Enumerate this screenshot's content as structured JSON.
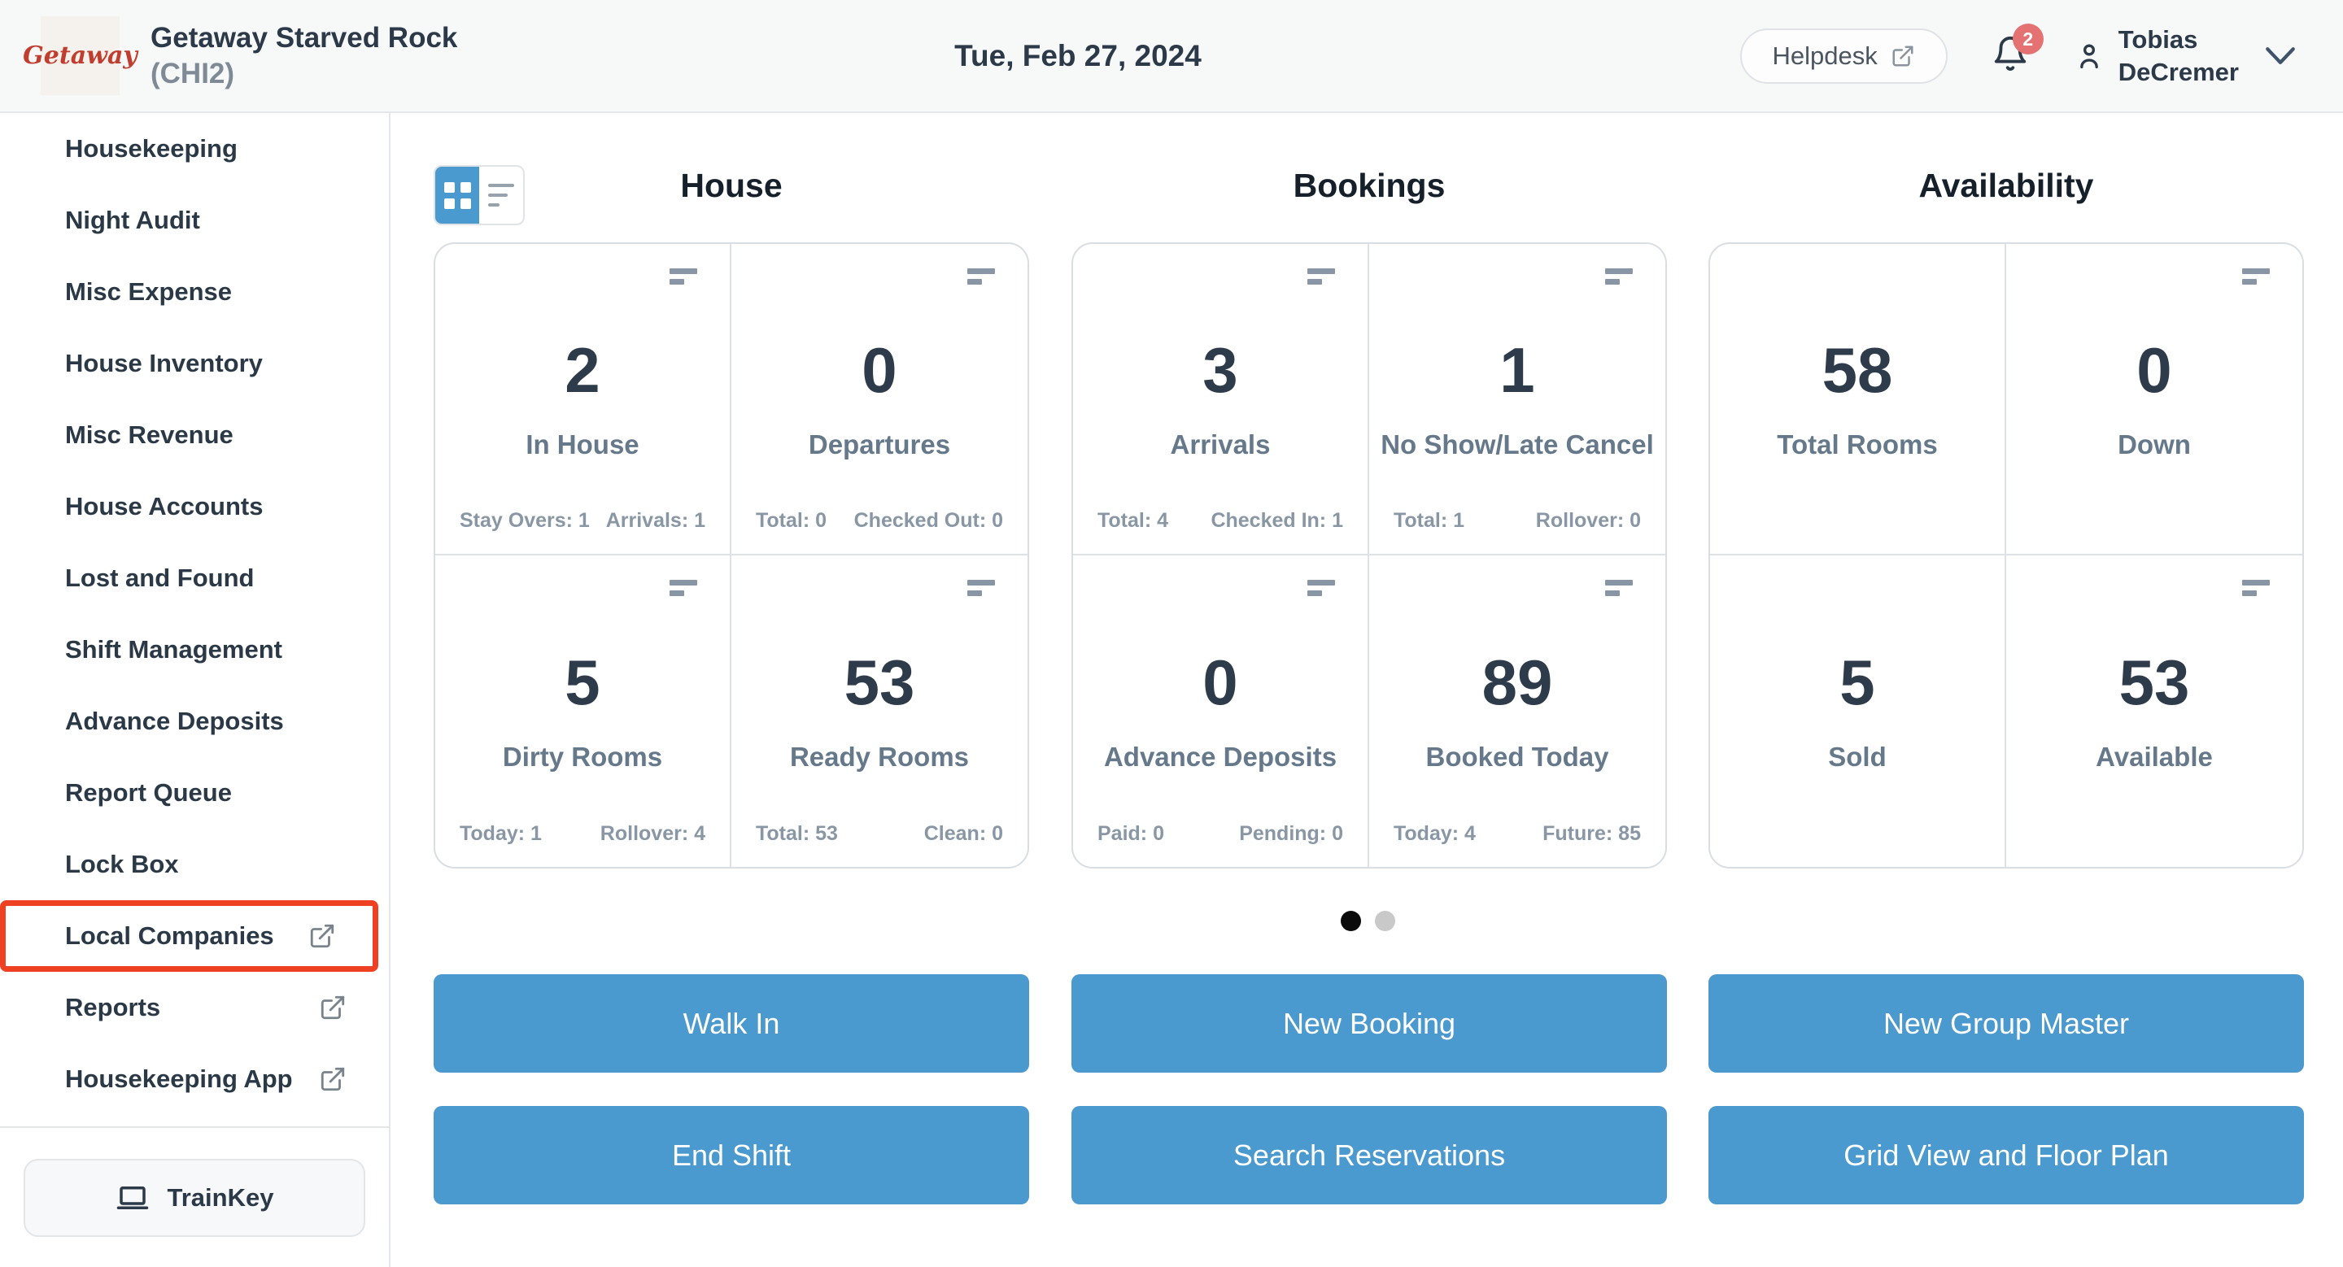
{
  "header": {
    "logo_text": "Getaway",
    "property_name": "Getaway Starved Rock",
    "property_code": "(CHI2)",
    "date": "Tue, Feb 27, 2024",
    "helpdesk_label": "Helpdesk",
    "notification_count": "2",
    "user_name_line1": "Tobias",
    "user_name_line2": "DeCremer"
  },
  "sidebar": {
    "items": [
      {
        "label": "Housekeeping",
        "external": false,
        "highlighted": false
      },
      {
        "label": "Night Audit",
        "external": false,
        "highlighted": false
      },
      {
        "label": "Misc Expense",
        "external": false,
        "highlighted": false
      },
      {
        "label": "House Inventory",
        "external": false,
        "highlighted": false
      },
      {
        "label": "Misc Revenue",
        "external": false,
        "highlighted": false
      },
      {
        "label": "House Accounts",
        "external": false,
        "highlighted": false
      },
      {
        "label": "Lost and Found",
        "external": false,
        "highlighted": false
      },
      {
        "label": "Shift Management",
        "external": false,
        "highlighted": false
      },
      {
        "label": "Advance Deposits",
        "external": false,
        "highlighted": false
      },
      {
        "label": "Report Queue",
        "external": false,
        "highlighted": false
      },
      {
        "label": "Lock Box",
        "external": false,
        "highlighted": false
      },
      {
        "label": "Local Companies",
        "external": true,
        "highlighted": true
      },
      {
        "label": "Reports",
        "external": true,
        "highlighted": false
      },
      {
        "label": "Housekeeping App",
        "external": true,
        "highlighted": false
      }
    ],
    "trainkey_label": "TrainKey"
  },
  "dashboard": {
    "sections": [
      {
        "title": "House",
        "cards": [
          {
            "value": "2",
            "label": "In House",
            "footer_left": "Stay Overs: 1",
            "footer_right": "Arrivals: 1",
            "icon": true
          },
          {
            "value": "0",
            "label": "Departures",
            "footer_left": "Total: 0",
            "footer_right": "Checked Out: 0",
            "icon": true
          },
          {
            "value": "5",
            "label": "Dirty Rooms",
            "footer_left": "Today: 1",
            "footer_right": "Rollover: 4",
            "icon": true
          },
          {
            "value": "53",
            "label": "Ready Rooms",
            "footer_left": "Total: 53",
            "footer_right": "Clean: 0",
            "icon": true
          }
        ],
        "buttons": [
          "Walk In",
          "End Shift"
        ]
      },
      {
        "title": "Bookings",
        "cards": [
          {
            "value": "3",
            "label": "Arrivals",
            "footer_left": "Total: 4",
            "footer_right": "Checked In: 1",
            "icon": true
          },
          {
            "value": "1",
            "label": "No Show/Late Cancel",
            "footer_left": "Total: 1",
            "footer_right": "Rollover: 0",
            "icon": true
          },
          {
            "value": "0",
            "label": "Advance Deposits",
            "footer_left": "Paid: 0",
            "footer_right": "Pending: 0",
            "icon": true
          },
          {
            "value": "89",
            "label": "Booked Today",
            "footer_left": "Today: 4",
            "footer_right": "Future: 85",
            "icon": true
          }
        ],
        "buttons": [
          "New Booking",
          "Search Reservations"
        ]
      },
      {
        "title": "Availability",
        "cards": [
          {
            "value": "58",
            "label": "Total Rooms",
            "footer_left": null,
            "footer_right": null,
            "icon": false
          },
          {
            "value": "0",
            "label": "Down",
            "footer_left": null,
            "footer_right": null,
            "icon": true
          },
          {
            "value": "5",
            "label": "Sold",
            "footer_left": null,
            "footer_right": null,
            "icon": false
          },
          {
            "value": "53",
            "label": "Available",
            "footer_left": null,
            "footer_right": null,
            "icon": true
          }
        ],
        "buttons": [
          "New Group Master",
          "Grid View and Floor Plan"
        ]
      }
    ],
    "pagination": {
      "dots": 2,
      "active_index": 0
    }
  },
  "icons": [
    "grid-view-icon",
    "list-view-icon",
    "bar-stats-icon",
    "external-link-icon",
    "bell-icon",
    "person-icon",
    "chevron-down-icon",
    "laptop-icon"
  ],
  "colors": {
    "accent_blue": "#4a99cf",
    "highlight_red": "#ee4023",
    "badge_red": "#e57272",
    "logo_red": "#c13e2e",
    "dark_text": "#2c3948",
    "muted_text": "#66798b",
    "faint_text": "#8997a5"
  }
}
